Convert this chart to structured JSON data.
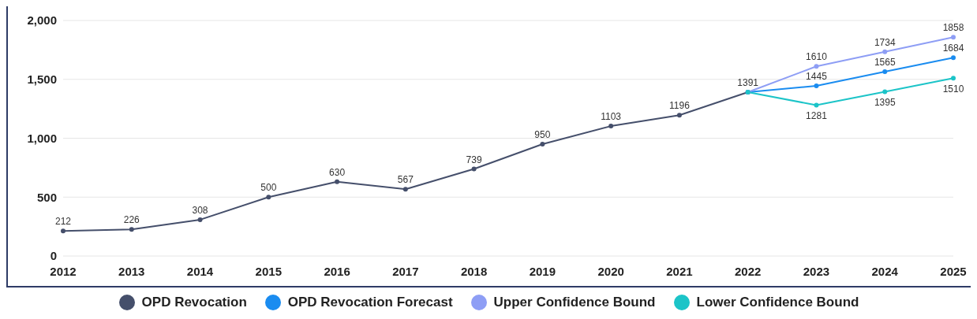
{
  "chart_data": {
    "type": "line",
    "categories": [
      "2012",
      "2013",
      "2014",
      "2015",
      "2016",
      "2017",
      "2018",
      "2019",
      "2020",
      "2021",
      "2022",
      "2023",
      "2024",
      "2025"
    ],
    "series": [
      {
        "name": "OPD Revocation",
        "color": "#454f6b",
        "values": [
          212,
          226,
          308,
          500,
          630,
          567,
          739,
          950,
          1103,
          1196,
          1391,
          null,
          null,
          null
        ],
        "value_labels": [
          "212",
          "226",
          "308",
          "500",
          "630",
          "567",
          "739",
          "950",
          "1103",
          "1196",
          "1391",
          null,
          null,
          null
        ]
      },
      {
        "name": "OPD Revocation Forecast",
        "color": "#1a8cf0",
        "values": [
          null,
          null,
          null,
          null,
          null,
          null,
          null,
          null,
          null,
          null,
          1391,
          1445,
          1565,
          1684
        ],
        "value_labels": [
          null,
          null,
          null,
          null,
          null,
          null,
          null,
          null,
          null,
          null,
          null,
          "1445",
          "1565",
          "1684"
        ]
      },
      {
        "name": "Upper Confidence Bound",
        "color": "#8e9ef5",
        "values": [
          null,
          null,
          null,
          null,
          null,
          null,
          null,
          null,
          null,
          null,
          1391,
          1610,
          1734,
          1858
        ],
        "value_labels": [
          null,
          null,
          null,
          null,
          null,
          null,
          null,
          null,
          null,
          null,
          null,
          "1610",
          "1734",
          "1858"
        ]
      },
      {
        "name": "Lower Confidence Bound",
        "color": "#1cc4c8",
        "values": [
          null,
          null,
          null,
          null,
          null,
          null,
          null,
          null,
          null,
          null,
          1391,
          1281,
          1395,
          1510
        ],
        "value_labels": [
          null,
          null,
          null,
          null,
          null,
          null,
          null,
          null,
          null,
          null,
          null,
          "1281",
          "1395",
          "1510"
        ]
      }
    ],
    "ylim": [
      0,
      2000
    ],
    "yticks": [
      0,
      500,
      {
        "value": 1000,
        "label": "1,000"
      },
      {
        "value": 1500,
        "label": "1,500"
      },
      {
        "value": 2000,
        "label": "2,000"
      }
    ],
    "grid": "y",
    "legend": "bottom",
    "marker": "circle",
    "line_style": "solid"
  }
}
